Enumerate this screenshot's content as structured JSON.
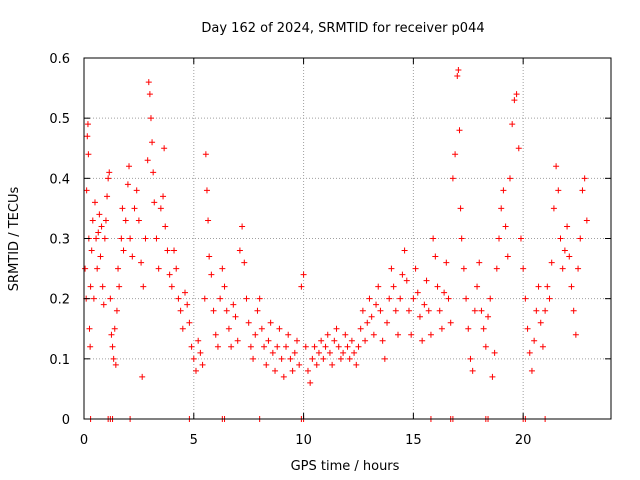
{
  "chart_data": {
    "type": "scatter",
    "title": "Day 162 of 2024, SRMTID for receiver p044",
    "xlabel": "GPS time / hours",
    "ylabel": "SRMTID / TECUs",
    "xlim": [
      0,
      24
    ],
    "ylim": [
      0,
      0.6
    ],
    "grid": true,
    "marker": "+",
    "color": "#ff0000",
    "x_ticks": [
      {
        "value": 0,
        "label": "0"
      },
      {
        "value": 5,
        "label": "5"
      },
      {
        "value": 10,
        "label": "10"
      },
      {
        "value": 15,
        "label": "15"
      },
      {
        "value": 20,
        "label": "20"
      }
    ],
    "y_ticks": [
      {
        "value": 0,
        "label": "0"
      },
      {
        "value": 0.1,
        "label": "0.1"
      },
      {
        "value": 0.2,
        "label": "0.2"
      },
      {
        "value": 0.3,
        "label": "0.3"
      },
      {
        "value": 0.4,
        "label": "0.4"
      },
      {
        "value": 0.5,
        "label": "0.5"
      },
      {
        "value": 0.6,
        "label": "0.6"
      }
    ],
    "series": [
      {
        "name": "p044",
        "points": [
          [
            0.05,
            0.25
          ],
          [
            0.1,
            0.2
          ],
          [
            0.12,
            0.38
          ],
          [
            0.15,
            0.47
          ],
          [
            0.18,
            0.49
          ],
          [
            0.2,
            0.44
          ],
          [
            0.22,
            0.3
          ],
          [
            0.25,
            0.15
          ],
          [
            0.28,
            0.12
          ],
          [
            0.3,
            0.22
          ],
          [
            0.35,
            0.28
          ],
          [
            0.4,
            0.33
          ],
          [
            0.45,
            0.2
          ],
          [
            0.5,
            0.36
          ],
          [
            0.55,
            0.3
          ],
          [
            0.6,
            0.25
          ],
          [
            0.65,
            0.31
          ],
          [
            0.7,
            0.34
          ],
          [
            0.75,
            0.27
          ],
          [
            0.8,
            0.32
          ],
          [
            0.85,
            0.22
          ],
          [
            0.9,
            0.19
          ],
          [
            0.95,
            0.3
          ],
          [
            1.0,
            0.33
          ],
          [
            1.05,
            0.37
          ],
          [
            1.1,
            0.4
          ],
          [
            1.15,
            0.41
          ],
          [
            1.2,
            0.2
          ],
          [
            1.25,
            0.14
          ],
          [
            1.3,
            0.12
          ],
          [
            1.35,
            0.1
          ],
          [
            1.4,
            0.15
          ],
          [
            1.45,
            0.09
          ],
          [
            1.5,
            0.18
          ],
          [
            1.55,
            0.25
          ],
          [
            1.6,
            0.22
          ],
          [
            1.7,
            0.3
          ],
          [
            1.75,
            0.35
          ],
          [
            1.8,
            0.28
          ],
          [
            1.9,
            0.33
          ],
          [
            2.0,
            0.39
          ],
          [
            2.05,
            0.42
          ],
          [
            2.1,
            0.3
          ],
          [
            2.2,
            0.27
          ],
          [
            2.3,
            0.35
          ],
          [
            2.4,
            0.38
          ],
          [
            2.5,
            0.33
          ],
          [
            2.6,
            0.26
          ],
          [
            2.65,
            0.07
          ],
          [
            2.7,
            0.22
          ],
          [
            2.8,
            0.3
          ],
          [
            2.9,
            0.43
          ],
          [
            2.95,
            0.56
          ],
          [
            3.0,
            0.54
          ],
          [
            3.05,
            0.5
          ],
          [
            3.1,
            0.46
          ],
          [
            3.15,
            0.41
          ],
          [
            3.2,
            0.36
          ],
          [
            3.3,
            0.3
          ],
          [
            3.4,
            0.25
          ],
          [
            3.5,
            0.35
          ],
          [
            3.6,
            0.37
          ],
          [
            3.65,
            0.45
          ],
          [
            3.7,
            0.32
          ],
          [
            3.8,
            0.28
          ],
          [
            3.9,
            0.24
          ],
          [
            4.0,
            0.22
          ],
          [
            4.1,
            0.28
          ],
          [
            4.2,
            0.25
          ],
          [
            4.3,
            0.2
          ],
          [
            4.4,
            0.18
          ],
          [
            4.5,
            0.15
          ],
          [
            4.6,
            0.21
          ],
          [
            4.7,
            0.19
          ],
          [
            4.8,
            0.16
          ],
          [
            4.9,
            0.12
          ],
          [
            5.0,
            0.1
          ],
          [
            5.1,
            0.08
          ],
          [
            5.2,
            0.13
          ],
          [
            5.3,
            0.11
          ],
          [
            5.4,
            0.09
          ],
          [
            5.5,
            0.2
          ],
          [
            5.55,
            0.44
          ],
          [
            5.6,
            0.38
          ],
          [
            5.65,
            0.33
          ],
          [
            5.7,
            0.27
          ],
          [
            5.8,
            0.24
          ],
          [
            5.9,
            0.18
          ],
          [
            6.0,
            0.14
          ],
          [
            6.1,
            0.12
          ],
          [
            6.2,
            0.2
          ],
          [
            6.3,
            0.25
          ],
          [
            6.4,
            0.22
          ],
          [
            6.5,
            0.18
          ],
          [
            6.6,
            0.15
          ],
          [
            6.7,
            0.12
          ],
          [
            6.8,
            0.19
          ],
          [
            6.9,
            0.17
          ],
          [
            7.0,
            0.13
          ],
          [
            7.1,
            0.28
          ],
          [
            7.2,
            0.32
          ],
          [
            7.3,
            0.26
          ],
          [
            7.4,
            0.2
          ],
          [
            7.5,
            0.16
          ],
          [
            7.6,
            0.12
          ],
          [
            7.7,
            0.1
          ],
          [
            7.8,
            0.14
          ],
          [
            7.9,
            0.18
          ],
          [
            8.0,
            0.2
          ],
          [
            8.1,
            0.15
          ],
          [
            8.2,
            0.12
          ],
          [
            8.3,
            0.09
          ],
          [
            8.4,
            0.13
          ],
          [
            8.5,
            0.16
          ],
          [
            8.6,
            0.11
          ],
          [
            8.7,
            0.08
          ],
          [
            8.8,
            0.12
          ],
          [
            8.9,
            0.15
          ],
          [
            9.0,
            0.1
          ],
          [
            9.1,
            0.07
          ],
          [
            9.2,
            0.12
          ],
          [
            9.3,
            0.14
          ],
          [
            9.4,
            0.1
          ],
          [
            9.5,
            0.08
          ],
          [
            9.6,
            0.11
          ],
          [
            9.7,
            0.13
          ],
          [
            9.8,
            0.09
          ],
          [
            9.9,
            0.22
          ],
          [
            10.0,
            0.24
          ],
          [
            10.1,
            0.12
          ],
          [
            10.2,
            0.08
          ],
          [
            10.3,
            0.06
          ],
          [
            10.4,
            0.1
          ],
          [
            10.5,
            0.12
          ],
          [
            10.6,
            0.09
          ],
          [
            10.7,
            0.11
          ],
          [
            10.8,
            0.13
          ],
          [
            10.9,
            0.1
          ],
          [
            11.0,
            0.12
          ],
          [
            11.1,
            0.14
          ],
          [
            11.2,
            0.11
          ],
          [
            11.3,
            0.09
          ],
          [
            11.4,
            0.13
          ],
          [
            11.5,
            0.15
          ],
          [
            11.6,
            0.12
          ],
          [
            11.7,
            0.1
          ],
          [
            11.8,
            0.11
          ],
          [
            11.9,
            0.14
          ],
          [
            12.0,
            0.12
          ],
          [
            12.1,
            0.1
          ],
          [
            12.2,
            0.13
          ],
          [
            12.3,
            0.11
          ],
          [
            12.4,
            0.09
          ],
          [
            12.5,
            0.12
          ],
          [
            12.6,
            0.15
          ],
          [
            12.7,
            0.18
          ],
          [
            12.8,
            0.13
          ],
          [
            12.9,
            0.16
          ],
          [
            13.0,
            0.2
          ],
          [
            13.1,
            0.17
          ],
          [
            13.2,
            0.14
          ],
          [
            13.3,
            0.19
          ],
          [
            13.4,
            0.22
          ],
          [
            13.5,
            0.18
          ],
          [
            13.6,
            0.13
          ],
          [
            13.7,
            0.1
          ],
          [
            13.8,
            0.16
          ],
          [
            13.9,
            0.2
          ],
          [
            14.0,
            0.25
          ],
          [
            14.1,
            0.22
          ],
          [
            14.2,
            0.18
          ],
          [
            14.3,
            0.14
          ],
          [
            14.4,
            0.2
          ],
          [
            14.5,
            0.24
          ],
          [
            14.6,
            0.28
          ],
          [
            14.7,
            0.23
          ],
          [
            14.8,
            0.18
          ],
          [
            14.9,
            0.14
          ],
          [
            15.0,
            0.2
          ],
          [
            15.1,
            0.25
          ],
          [
            15.2,
            0.21
          ],
          [
            15.3,
            0.17
          ],
          [
            15.4,
            0.13
          ],
          [
            15.5,
            0.19
          ],
          [
            15.6,
            0.23
          ],
          [
            15.7,
            0.18
          ],
          [
            15.8,
            0.14
          ],
          [
            15.9,
            0.3
          ],
          [
            16.0,
            0.27
          ],
          [
            16.1,
            0.22
          ],
          [
            16.2,
            0.18
          ],
          [
            16.3,
            0.15
          ],
          [
            16.4,
            0.21
          ],
          [
            16.5,
            0.26
          ],
          [
            16.6,
            0.2
          ],
          [
            16.7,
            0.16
          ],
          [
            16.8,
            0.4
          ],
          [
            16.9,
            0.44
          ],
          [
            17.0,
            0.57
          ],
          [
            17.05,
            0.58
          ],
          [
            17.1,
            0.48
          ],
          [
            17.15,
            0.35
          ],
          [
            17.2,
            0.3
          ],
          [
            17.3,
            0.25
          ],
          [
            17.4,
            0.2
          ],
          [
            17.5,
            0.15
          ],
          [
            17.6,
            0.1
          ],
          [
            17.7,
            0.08
          ],
          [
            17.8,
            0.18
          ],
          [
            17.9,
            0.22
          ],
          [
            18.0,
            0.26
          ],
          [
            18.1,
            0.18
          ],
          [
            18.2,
            0.15
          ],
          [
            18.3,
            0.12
          ],
          [
            18.4,
            0.17
          ],
          [
            18.5,
            0.2
          ],
          [
            18.6,
            0.07
          ],
          [
            18.7,
            0.11
          ],
          [
            18.8,
            0.25
          ],
          [
            18.9,
            0.3
          ],
          [
            19.0,
            0.35
          ],
          [
            19.1,
            0.38
          ],
          [
            19.2,
            0.32
          ],
          [
            19.3,
            0.27
          ],
          [
            19.4,
            0.4
          ],
          [
            19.5,
            0.49
          ],
          [
            19.6,
            0.53
          ],
          [
            19.7,
            0.54
          ],
          [
            19.8,
            0.45
          ],
          [
            19.9,
            0.3
          ],
          [
            20.0,
            0.25
          ],
          [
            20.1,
            0.2
          ],
          [
            20.2,
            0.15
          ],
          [
            20.3,
            0.11
          ],
          [
            20.4,
            0.08
          ],
          [
            20.5,
            0.13
          ],
          [
            20.6,
            0.18
          ],
          [
            20.7,
            0.22
          ],
          [
            20.8,
            0.16
          ],
          [
            20.9,
            0.12
          ],
          [
            21.0,
            0.18
          ],
          [
            21.1,
            0.22
          ],
          [
            21.2,
            0.2
          ],
          [
            21.3,
            0.26
          ],
          [
            21.4,
            0.35
          ],
          [
            21.5,
            0.42
          ],
          [
            21.6,
            0.38
          ],
          [
            21.7,
            0.3
          ],
          [
            21.8,
            0.25
          ],
          [
            21.9,
            0.28
          ],
          [
            22.0,
            0.32
          ],
          [
            22.1,
            0.27
          ],
          [
            22.2,
            0.22
          ],
          [
            22.3,
            0.18
          ],
          [
            22.4,
            0.14
          ],
          [
            22.5,
            0.25
          ],
          [
            22.6,
            0.3
          ],
          [
            22.7,
            0.38
          ],
          [
            22.8,
            0.4
          ],
          [
            22.9,
            0.33
          ],
          [
            0.3,
            0.0
          ],
          [
            1.1,
            0.0
          ],
          [
            1.2,
            0.0
          ],
          [
            1.3,
            0.0
          ],
          [
            2.1,
            0.0
          ],
          [
            4.8,
            0.0
          ],
          [
            6.3,
            0.0
          ],
          [
            6.4,
            0.0
          ],
          [
            8.0,
            0.0
          ],
          [
            9.9,
            0.0
          ],
          [
            10.0,
            0.0
          ],
          [
            15.8,
            0.0
          ],
          [
            16.7,
            0.0
          ],
          [
            16.8,
            0.0
          ],
          [
            18.3,
            0.0
          ],
          [
            18.4,
            0.0
          ],
          [
            20.0,
            0.0
          ],
          [
            20.1,
            0.0
          ],
          [
            21.0,
            0.0
          ]
        ]
      }
    ]
  }
}
